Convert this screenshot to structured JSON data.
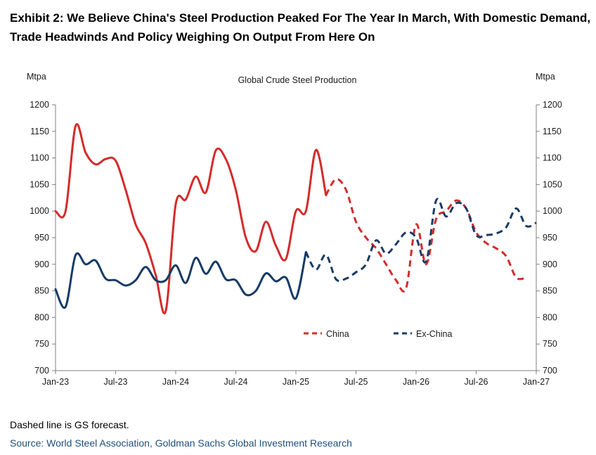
{
  "header": {
    "line1": "Exhibit 2: We Believe China's Steel Production Peaked For The Year In March, With Domestic Demand,",
    "line2": "Trade Headwinds And Policy Weighing On Output From Here On"
  },
  "footer": {
    "note": "Dashed line is GS forecast.",
    "source": "Source: World Steel Association, Goldman Sachs Global Investment Research"
  },
  "colors": {
    "china": "#d42b2b",
    "exchina": "#173b66",
    "axis": "#7f7f7f"
  },
  "chart_data": {
    "type": "line",
    "title": "Global Crude  Steel Production",
    "ylabel_left": "Mtpa",
    "ylabel_right": "Mtpa",
    "ylim": [
      700,
      1200
    ],
    "yticks": [
      700,
      750,
      800,
      850,
      900,
      950,
      1000,
      1050,
      1100,
      1150,
      1200
    ],
    "xlim": [
      0,
      48
    ],
    "xtick_labels": [
      "Jan-23",
      "Jul-23",
      "Jan-24",
      "Jul-24",
      "Jan-25",
      "Jul-25",
      "Jan-26",
      "Jul-26",
      "Jan-27"
    ],
    "xtick_positions": [
      0,
      6,
      12,
      18,
      24,
      30,
      36,
      42,
      48
    ],
    "legend_position": "bottom-center",
    "forecast_note": "dashed = GS forecast",
    "series": [
      {
        "name": "China",
        "actual": [
          [
            0,
            1000
          ],
          [
            1,
            1000
          ],
          [
            2,
            1160
          ],
          [
            3,
            1110
          ],
          [
            4,
            1088
          ],
          [
            5,
            1098
          ],
          [
            6,
            1095
          ],
          [
            7,
            1040
          ],
          [
            8,
            975
          ],
          [
            9,
            940
          ],
          [
            10,
            880
          ],
          [
            11,
            812
          ],
          [
            12,
            1013
          ],
          [
            13,
            1022
          ],
          [
            14,
            1065
          ],
          [
            15,
            1035
          ],
          [
            16,
            1114
          ],
          [
            17,
            1098
          ],
          [
            18,
            1040
          ],
          [
            19,
            950
          ],
          [
            20,
            925
          ],
          [
            21,
            980
          ],
          [
            22,
            935
          ],
          [
            23,
            910
          ],
          [
            24,
            1000
          ],
          [
            25,
            1000
          ],
          [
            26,
            1115
          ],
          [
            27,
            1030
          ]
        ],
        "forecast": [
          [
            27,
            1030
          ],
          [
            28,
            1060
          ],
          [
            29,
            1040
          ],
          [
            30,
            980
          ],
          [
            31,
            950
          ],
          [
            32,
            930
          ],
          [
            33,
            900
          ],
          [
            34,
            870
          ],
          [
            35,
            855
          ],
          [
            36,
            975
          ],
          [
            37,
            900
          ],
          [
            38,
            985
          ],
          [
            39,
            1000
          ],
          [
            40,
            1020
          ],
          [
            41,
            1005
          ],
          [
            42,
            960
          ],
          [
            43,
            940
          ],
          [
            44,
            930
          ],
          [
            45,
            915
          ],
          [
            46,
            875
          ],
          [
            47,
            875
          ]
        ]
      },
      {
        "name": "Ex-China",
        "actual": [
          [
            0,
            853
          ],
          [
            1,
            820
          ],
          [
            2,
            917
          ],
          [
            3,
            900
          ],
          [
            4,
            907
          ],
          [
            5,
            873
          ],
          [
            6,
            870
          ],
          [
            7,
            860
          ],
          [
            8,
            870
          ],
          [
            9,
            895
          ],
          [
            10,
            870
          ],
          [
            11,
            870
          ],
          [
            12,
            898
          ],
          [
            13,
            865
          ],
          [
            14,
            912
          ],
          [
            15,
            882
          ],
          [
            16,
            905
          ],
          [
            17,
            872
          ],
          [
            18,
            870
          ],
          [
            19,
            843
          ],
          [
            20,
            850
          ],
          [
            21,
            883
          ],
          [
            22,
            868
          ],
          [
            23,
            875
          ],
          [
            24,
            836
          ],
          [
            25,
            923
          ]
        ],
        "forecast": [
          [
            25,
            923
          ],
          [
            26,
            890
          ],
          [
            27,
            918
          ],
          [
            28,
            872
          ],
          [
            29,
            873
          ],
          [
            30,
            885
          ],
          [
            31,
            900
          ],
          [
            32,
            945
          ],
          [
            33,
            920
          ],
          [
            34,
            938
          ],
          [
            35,
            960
          ],
          [
            36,
            950
          ],
          [
            37,
            905
          ],
          [
            38,
            1020
          ],
          [
            39,
            990
          ],
          [
            40,
            1015
          ],
          [
            41,
            1005
          ],
          [
            42,
            955
          ],
          [
            43,
            955
          ],
          [
            44,
            958
          ],
          [
            45,
            970
          ],
          [
            46,
            1005
          ],
          [
            47,
            972
          ],
          [
            48,
            978
          ]
        ]
      }
    ]
  }
}
